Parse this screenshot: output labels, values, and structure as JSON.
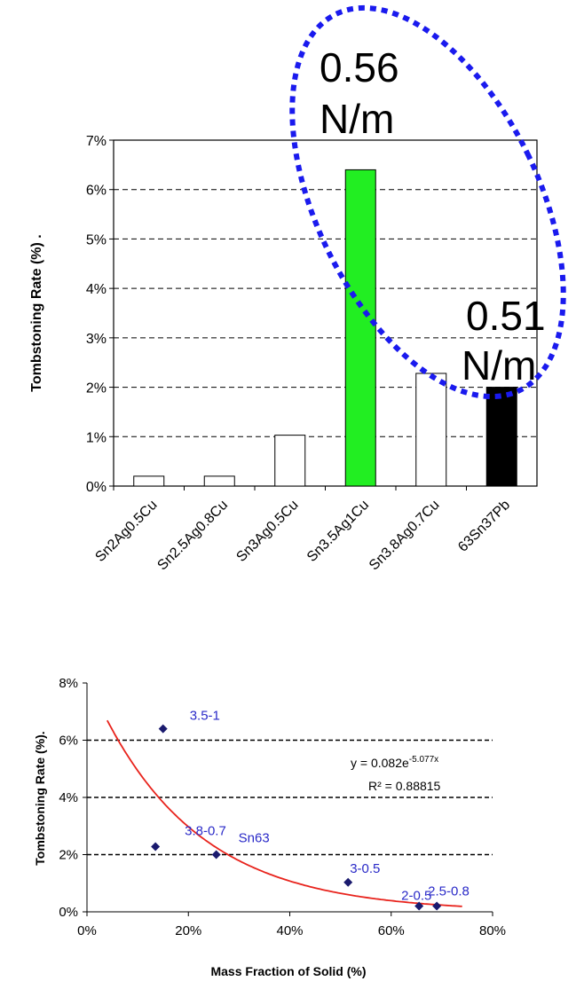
{
  "chart_data": [
    {
      "type": "bar",
      "ylabel": "Tombstoning Rate (%) .",
      "categories": [
        "Sn2Ag0.5Cu",
        "Sn2.5Ag0.8Cu",
        "Sn3Ag0.5Cu",
        "Sn3.5Ag1Cu",
        "Sn3.8Ag0.7Cu",
        "63Sn37Pb"
      ],
      "values": [
        0.2,
        0.2,
        1.03,
        6.4,
        2.28,
        2.0
      ],
      "bar_colors": [
        "#ffffff",
        "#ffffff",
        "#ffffff",
        "#22ee22",
        "#ffffff",
        "#000000"
      ],
      "ylim": [
        0,
        7
      ],
      "yticks": [
        "0%",
        "1%",
        "2%",
        "3%",
        "4%",
        "5%",
        "6%",
        "7%"
      ],
      "grid": "dashed horizontal",
      "annotations": [
        {
          "line1": "0.56",
          "line2": "N/m"
        },
        {
          "line1": "0.51",
          "line2": "N/m"
        }
      ],
      "highlight_color": "#1a1aee"
    },
    {
      "type": "scatter",
      "xlabel": "Mass Fraction of Solid (%)",
      "ylabel": "Tombstoning Rate (%).",
      "xlim": [
        0,
        80
      ],
      "ylim": [
        0,
        8
      ],
      "xticks": [
        "0%",
        "20%",
        "40%",
        "60%",
        "80%"
      ],
      "yticks": [
        "0%",
        "2%",
        "4%",
        "6%",
        "8%"
      ],
      "points": [
        {
          "label": "3.5-1",
          "x": 15,
          "y": 6.4
        },
        {
          "label": "3.8-0.7",
          "x": 13.5,
          "y": 2.28
        },
        {
          "label": "Sn63",
          "x": 25.5,
          "y": 2.0
        },
        {
          "label": "3-0.5",
          "x": 51.5,
          "y": 1.03
        },
        {
          "label": "2-0.5",
          "x": 65.5,
          "y": 0.2
        },
        {
          "label": "2.5-0.8",
          "x": 69,
          "y": 0.2
        }
      ],
      "fit": {
        "a": 0.082,
        "b": -5.077,
        "x_range": [
          4,
          74
        ]
      },
      "equation_main": "y = 0.082e",
      "equation_exp": "-5.077x",
      "r2": "R² = 0.88815",
      "marker_color": "#1a1a6e",
      "fit_color": "#e8231c"
    }
  ]
}
